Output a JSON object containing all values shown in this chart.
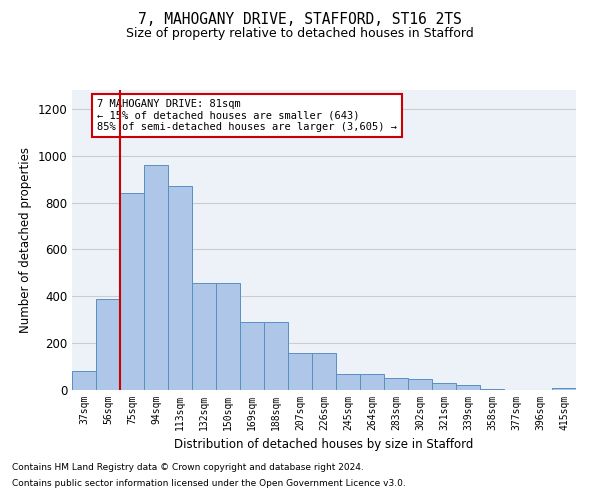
{
  "title1": "7, MAHOGANY DRIVE, STAFFORD, ST16 2TS",
  "title2": "Size of property relative to detached houses in Stafford",
  "xlabel": "Distribution of detached houses by size in Stafford",
  "ylabel": "Number of detached properties",
  "categories": [
    "37sqm",
    "56sqm",
    "75sqm",
    "94sqm",
    "113sqm",
    "132sqm",
    "150sqm",
    "169sqm",
    "188sqm",
    "207sqm",
    "226sqm",
    "245sqm",
    "264sqm",
    "283sqm",
    "302sqm",
    "321sqm",
    "339sqm",
    "358sqm",
    "377sqm",
    "396sqm",
    "415sqm"
  ],
  "values": [
    80,
    390,
    840,
    960,
    870,
    455,
    455,
    290,
    290,
    160,
    160,
    70,
    70,
    50,
    45,
    30,
    20,
    5,
    0,
    0,
    10
  ],
  "bar_color": "#aec6e8",
  "bar_edge_color": "#5a8fc2",
  "vline_x": 1.5,
  "vline_color": "#cc0000",
  "annotation_line1": "7 MAHOGANY DRIVE: 81sqm",
  "annotation_line2": "← 15% of detached houses are smaller (643)",
  "annotation_line3": "85% of semi-detached houses are larger (3,605) →",
  "annotation_box_color": "#ffffff",
  "annotation_box_edge": "#cc0000",
  "ylim": [
    0,
    1280
  ],
  "yticks": [
    0,
    200,
    400,
    600,
    800,
    1000,
    1200
  ],
  "grid_color": "#cccccc",
  "footer1": "Contains HM Land Registry data © Crown copyright and database right 2024.",
  "footer2": "Contains public sector information licensed under the Open Government Licence v3.0.",
  "bg_color": "#edf2f9"
}
